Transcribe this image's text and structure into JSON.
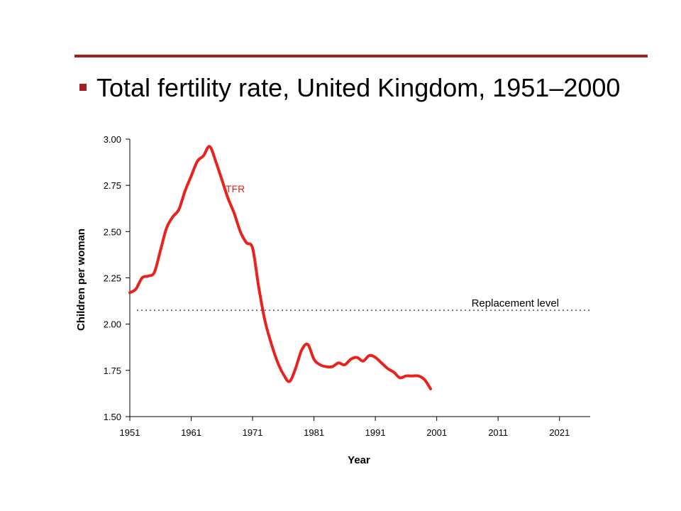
{
  "slide": {
    "title": "Total fertility rate, United Kingdom, 1951–2000",
    "accent_color": "#a31f24"
  },
  "chart_data": {
    "type": "line",
    "xlabel": "Year",
    "ylabel": "Children per woman",
    "xlim": [
      1951,
      2026
    ],
    "ylim": [
      1.5,
      3.0
    ],
    "x_ticks": [
      "1951",
      "1961",
      "1971",
      "1981",
      "1991",
      "2001",
      "2011",
      "2021"
    ],
    "y_ticks": [
      "1.50",
      "1.75",
      "2.00",
      "2.25",
      "2.50",
      "2.75",
      "3.00"
    ],
    "grid": false,
    "series": [
      {
        "name": "TFR",
        "color": "#e8221c",
        "x": [
          1951,
          1952,
          1953,
          1954,
          1955,
          1956,
          1957,
          1958,
          1959,
          1960,
          1961,
          1962,
          1963,
          1964,
          1965,
          1966,
          1967,
          1968,
          1969,
          1970,
          1971,
          1972,
          1973,
          1974,
          1975,
          1976,
          1977,
          1978,
          1979,
          1980,
          1981,
          1982,
          1983,
          1984,
          1985,
          1986,
          1987,
          1988,
          1989,
          1990,
          1991,
          1992,
          1993,
          1994,
          1995,
          1996,
          1997,
          1998,
          1999,
          2000
        ],
        "y": [
          2.17,
          2.19,
          2.25,
          2.26,
          2.28,
          2.4,
          2.52,
          2.58,
          2.62,
          2.72,
          2.8,
          2.88,
          2.91,
          2.96,
          2.88,
          2.78,
          2.68,
          2.6,
          2.5,
          2.44,
          2.41,
          2.2,
          2.02,
          1.9,
          1.8,
          1.73,
          1.69,
          1.76,
          1.86,
          1.89,
          1.81,
          1.78,
          1.77,
          1.77,
          1.79,
          1.78,
          1.81,
          1.82,
          1.8,
          1.83,
          1.82,
          1.79,
          1.76,
          1.74,
          1.71,
          1.72,
          1.72,
          1.72,
          1.7,
          1.65
        ]
      }
    ],
    "annotations": [
      {
        "text": "Replacement level",
        "y": 2.075,
        "line_style": "dotted"
      }
    ]
  }
}
